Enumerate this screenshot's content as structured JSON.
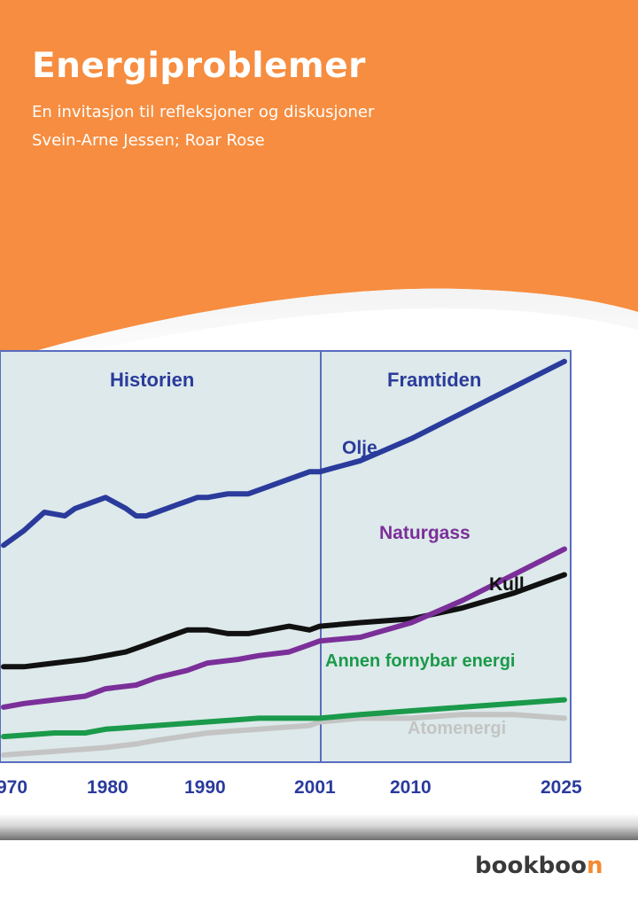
{
  "cover": {
    "title": "Energiproblemer",
    "subtitle": "En invitasjon til refleksjoner og diskusjoner",
    "authors": "Svein-Arne Jessen; Roar Rose",
    "publisher_main": "bookboo",
    "publisher_accent": "n"
  },
  "colors": {
    "orange": "#f68d40",
    "chart_bg": "#dde9ea",
    "frame": "#5a6cc0",
    "olje": "#2a3b9c",
    "naturgass": "#7b2f99",
    "kull": "#111111",
    "fornybar": "#1a9a4a",
    "atom": "#c4c4c4"
  },
  "chart_data": {
    "type": "line",
    "x_ticks": [
      "970",
      "1980",
      "1990",
      "2001",
      "2010",
      "2025"
    ],
    "sections": [
      "Historien",
      "Framtiden"
    ],
    "divider_year": 2001,
    "series": [
      {
        "name": "Olje",
        "color": "#2a3b9c",
        "x": [
          1970,
          1972,
          1974,
          1976,
          1977,
          1979,
          1980,
          1982,
          1983,
          1984,
          1985,
          1986,
          1987,
          1988,
          1989,
          1990,
          1992,
          1994,
          1996,
          1998,
          2000,
          2001,
          2005,
          2010,
          2015,
          2020,
          2025
        ],
        "y": [
          58,
          62,
          67,
          66,
          68,
          70,
          71,
          68,
          66,
          66,
          67,
          68,
          69,
          70,
          71,
          71,
          72,
          72,
          74,
          76,
          78,
          78,
          81,
          87,
          94,
          101,
          108
        ]
      },
      {
        "name": "Naturgass",
        "color": "#7b2f99",
        "x": [
          1970,
          1972,
          1975,
          1978,
          1980,
          1983,
          1985,
          1988,
          1990,
          1993,
          1995,
          1998,
          2000,
          2001,
          2005,
          2010,
          2015,
          2020,
          2025
        ],
        "y": [
          14,
          15,
          16,
          17,
          19,
          20,
          22,
          24,
          26,
          27,
          28,
          29,
          31,
          32,
          33,
          37,
          43,
          50,
          57
        ]
      },
      {
        "name": "Kull",
        "color": "#111111",
        "x": [
          1970,
          1972,
          1975,
          1978,
          1980,
          1982,
          1984,
          1986,
          1988,
          1990,
          1992,
          1994,
          1996,
          1998,
          2000,
          2001,
          2005,
          2010,
          2015,
          2020,
          2025
        ],
        "y": [
          25,
          25,
          26,
          27,
          28,
          29,
          31,
          33,
          35,
          35,
          34,
          34,
          35,
          36,
          35,
          36,
          37,
          38,
          41,
          45,
          50
        ]
      },
      {
        "name": "Annen fornybar energi",
        "color": "#1a9a4a",
        "x": [
          1970,
          1975,
          1978,
          1980,
          1985,
          1990,
          1995,
          2000,
          2001,
          2005,
          2010,
          2015,
          2020,
          2025
        ],
        "y": [
          6,
          7,
          7,
          8,
          9,
          10,
          11,
          11,
          11,
          12,
          13,
          14,
          15,
          16
        ]
      },
      {
        "name": "Atomenergi",
        "color": "#c4c4c4",
        "x": [
          1970,
          1975,
          1980,
          1983,
          1985,
          1990,
          1995,
          2000,
          2001,
          2005,
          2010,
          2015,
          2020,
          2025
        ],
        "y": [
          1,
          2,
          3,
          4,
          5,
          7,
          8,
          9,
          10,
          11,
          11,
          12,
          12,
          11
        ]
      }
    ]
  }
}
